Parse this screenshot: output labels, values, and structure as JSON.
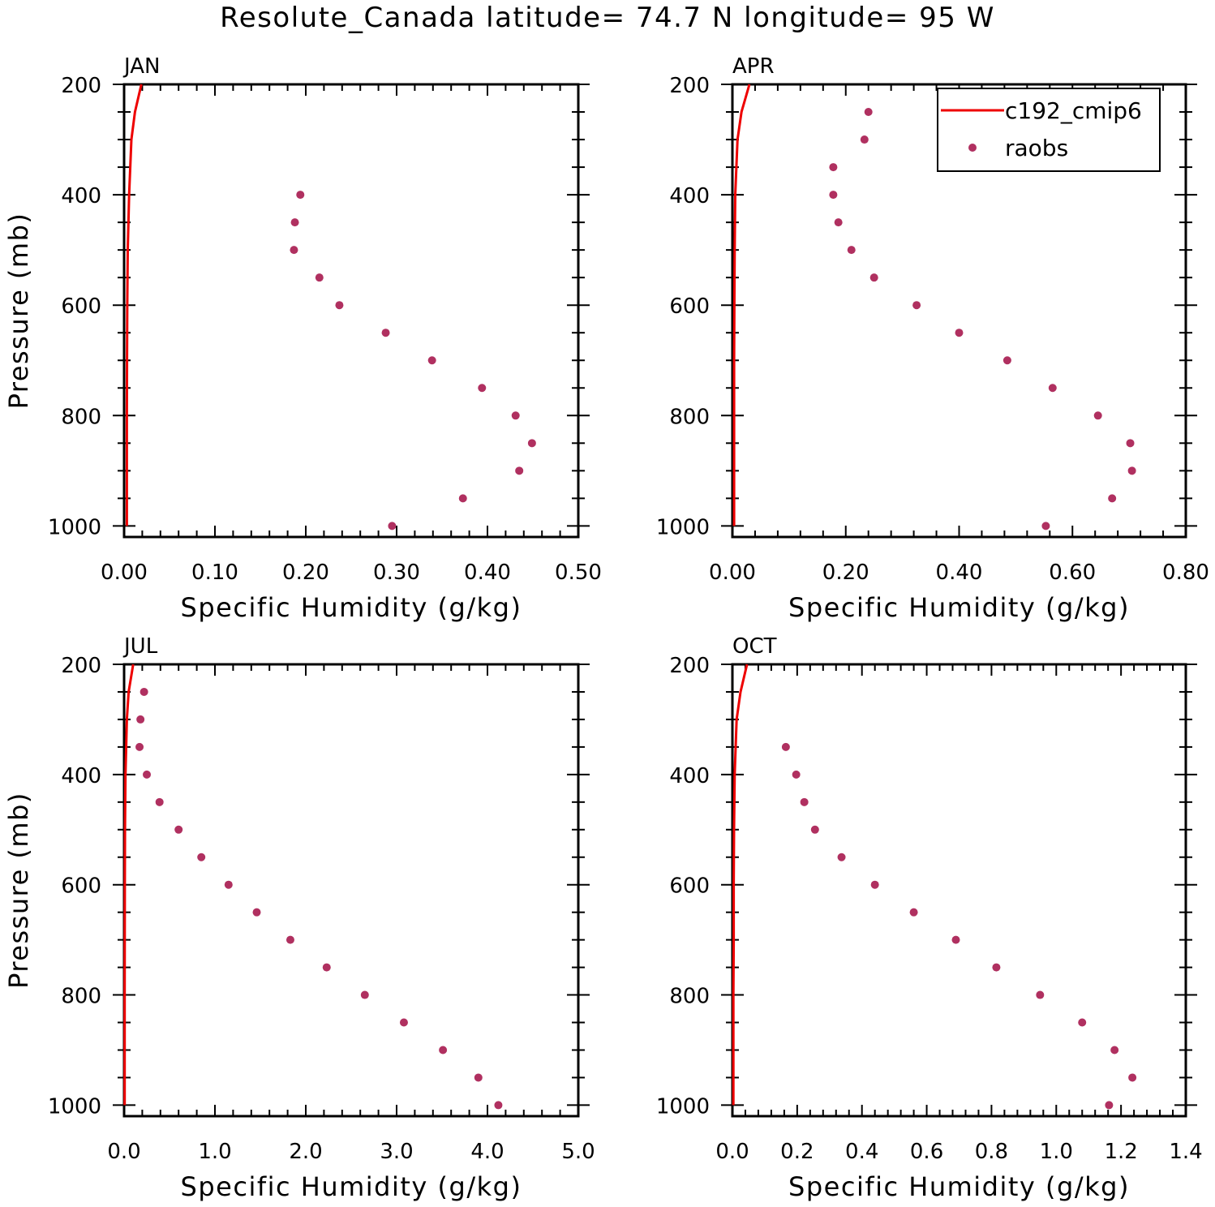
{
  "title": "Resolute_Canada  latitude= 74.7 N longitude= 95 W",
  "colors": {
    "model": "#ee0000",
    "obs": "#b03060",
    "axis": "#000000"
  },
  "legend": {
    "model_label": "c192_cmip6",
    "obs_label": "raobs",
    "panel": 1,
    "position": "top-right"
  },
  "chart_data": [
    {
      "type": "scatter",
      "panel_label": "JAN",
      "xlabel": "Specific Humidity (g/kg)",
      "ylabel": "Pressure (mb)",
      "xlim": [
        0,
        0.5
      ],
      "ylim": [
        1020,
        200
      ],
      "xticks": [
        0,
        0.1,
        0.2,
        0.3,
        0.4,
        0.5
      ],
      "xtick_labels": [
        "0.00",
        "0.10",
        "0.20",
        "0.30",
        "0.40",
        "0.50"
      ],
      "yticks": [
        200,
        400,
        600,
        800,
        1000
      ],
      "ytick_labels": [
        "200",
        "400",
        "600",
        "800",
        "1000"
      ],
      "series": [
        {
          "name": "c192_cmip6",
          "kind": "line",
          "p": [
            200,
            250,
            300,
            400,
            500,
            600,
            700,
            800,
            900,
            1000
          ],
          "q": [
            0.019,
            0.012,
            0.008,
            0.0055,
            0.004,
            0.0035,
            0.0032,
            0.003,
            0.003,
            0.003
          ]
        },
        {
          "name": "raobs",
          "kind": "points",
          "p": [
            400,
            450,
            500,
            550,
            600,
            650,
            700,
            750,
            800,
            850,
            900,
            950,
            1000
          ],
          "q": [
            0.194,
            0.188,
            0.187,
            0.215,
            0.237,
            0.288,
            0.339,
            0.394,
            0.431,
            0.449,
            0.435,
            0.373,
            0.295
          ]
        }
      ]
    },
    {
      "type": "scatter",
      "panel_label": "APR",
      "xlabel": "Specific Humidity (g/kg)",
      "ylabel": "",
      "xlim": [
        0,
        0.8
      ],
      "ylim": [
        1020,
        200
      ],
      "xticks": [
        0,
        0.2,
        0.4,
        0.6,
        0.8
      ],
      "xtick_labels": [
        "0.00",
        "0.20",
        "0.40",
        "0.60",
        "0.80"
      ],
      "yticks": [
        200,
        400,
        600,
        800,
        1000
      ],
      "ytick_labels": [
        "200",
        "400",
        "600",
        "800",
        "1000"
      ],
      "series": [
        {
          "name": "c192_cmip6",
          "kind": "line",
          "p": [
            200,
            250,
            300,
            400,
            500,
            600,
            700,
            800,
            900,
            1000
          ],
          "q": [
            0.03,
            0.016,
            0.009,
            0.005,
            0.004,
            0.0035,
            0.003,
            0.003,
            0.003,
            0.003
          ]
        },
        {
          "name": "raobs",
          "kind": "points",
          "p": [
            250,
            300,
            350,
            400,
            450,
            500,
            550,
            600,
            650,
            700,
            750,
            800,
            850,
            900,
            950,
            1000
          ],
          "q": [
            0.24,
            0.233,
            0.178,
            0.178,
            0.187,
            0.21,
            0.25,
            0.325,
            0.4,
            0.485,
            0.565,
            0.645,
            0.702,
            0.705,
            0.67,
            0.553
          ]
        }
      ]
    },
    {
      "type": "scatter",
      "panel_label": "JUL",
      "xlabel": "Specific Humidity (g/kg)",
      "ylabel": "Pressure (mb)",
      "xlim": [
        0,
        5.0
      ],
      "ylim": [
        1020,
        200
      ],
      "xticks": [
        0,
        1,
        2,
        3,
        4,
        5
      ],
      "xtick_labels": [
        "0.0",
        "1.0",
        "2.0",
        "3.0",
        "4.0",
        "5.0"
      ],
      "yticks": [
        200,
        400,
        600,
        800,
        1000
      ],
      "ytick_labels": [
        "200",
        "400",
        "600",
        "800",
        "1000"
      ],
      "series": [
        {
          "name": "c192_cmip6",
          "kind": "line",
          "p": [
            200,
            250,
            300,
            400,
            500,
            600,
            700,
            800,
            900,
            1000
          ],
          "q": [
            0.1,
            0.05,
            0.03,
            0.015,
            0.01,
            0.008,
            0.007,
            0.006,
            0.006,
            0.006
          ]
        },
        {
          "name": "raobs",
          "kind": "points",
          "p": [
            250,
            300,
            350,
            400,
            450,
            500,
            550,
            600,
            650,
            700,
            750,
            800,
            850,
            900,
            950,
            1000
          ],
          "q": [
            0.22,
            0.18,
            0.17,
            0.25,
            0.39,
            0.6,
            0.85,
            1.15,
            1.46,
            1.83,
            2.23,
            2.65,
            3.08,
            3.51,
            3.9,
            4.12
          ]
        }
      ]
    },
    {
      "type": "scatter",
      "panel_label": "OCT",
      "xlabel": "Specific Humidity (g/kg)",
      "ylabel": "",
      "xlim": [
        0,
        1.4
      ],
      "ylim": [
        1020,
        200
      ],
      "xticks": [
        0,
        0.2,
        0.4,
        0.6,
        0.8,
        1.0,
        1.2,
        1.4
      ],
      "xtick_labels": [
        "0.0",
        "0.2",
        "0.4",
        "0.6",
        "0.8",
        "1.0",
        "1.2",
        "1.4"
      ],
      "yticks": [
        200,
        400,
        600,
        800,
        1000
      ],
      "ytick_labels": [
        "200",
        "400",
        "600",
        "800",
        "1000"
      ],
      "series": [
        {
          "name": "c192_cmip6",
          "kind": "line",
          "p": [
            200,
            250,
            300,
            400,
            500,
            600,
            700,
            800,
            900,
            1000
          ],
          "q": [
            0.045,
            0.025,
            0.013,
            0.007,
            0.005,
            0.004,
            0.004,
            0.003,
            0.003,
            0.003
          ]
        },
        {
          "name": "raobs",
          "kind": "points",
          "p": [
            350,
            400,
            450,
            500,
            550,
            600,
            650,
            700,
            750,
            800,
            850,
            900,
            950,
            1000
          ],
          "q": [
            0.165,
            0.197,
            0.222,
            0.255,
            0.337,
            0.44,
            0.56,
            0.69,
            0.815,
            0.95,
            1.08,
            1.18,
            1.235,
            1.163
          ]
        }
      ]
    }
  ]
}
